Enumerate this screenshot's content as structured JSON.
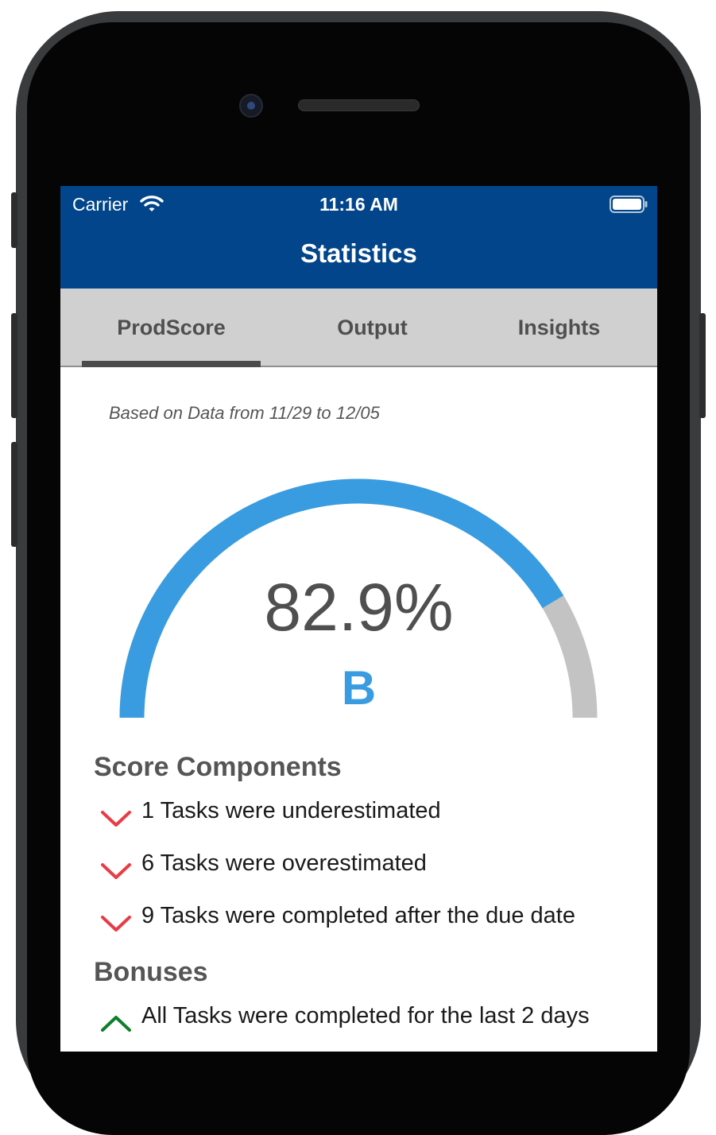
{
  "colors": {
    "header_blue": "#02458a",
    "tab_bar_gray": "#d0d0d0",
    "gauge_blue": "#399ce0",
    "gauge_gray": "#c3c3c3",
    "negative_red": "#ea3b44",
    "positive_green": "#0f7d2b"
  },
  "status_bar": {
    "carrier": "Carrier",
    "time": "11:16 AM",
    "wifi_icon": "wifi-icon",
    "battery_icon": "battery-icon"
  },
  "nav": {
    "title": "Statistics"
  },
  "tabs": [
    {
      "label": "ProdScore",
      "selected": true
    },
    {
      "label": "Output",
      "selected": false
    },
    {
      "label": "Insights",
      "selected": false
    }
  ],
  "date_range": "Based on Data from 11/29 to 12/05",
  "score": {
    "value_text": "82.9%",
    "fraction": 0.829,
    "grade": "B"
  },
  "score_components": {
    "title": "Score Components",
    "items": [
      {
        "icon": "chevron-down-icon",
        "text": "1 Tasks were underestimated"
      },
      {
        "icon": "chevron-down-icon",
        "text": "6 Tasks were overestimated"
      },
      {
        "icon": "chevron-down-icon",
        "text": "9 Tasks were completed after the due date"
      }
    ]
  },
  "bonuses": {
    "title": "Bonuses",
    "items": [
      {
        "icon": "chevron-up-icon",
        "text": "All Tasks were completed for the last 2 days"
      }
    ]
  }
}
